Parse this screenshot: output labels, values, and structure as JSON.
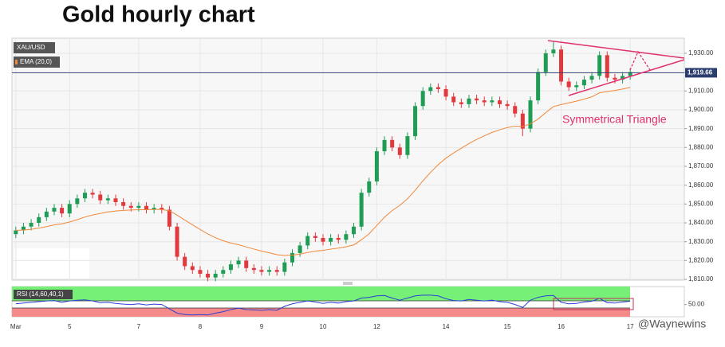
{
  "watermark": "@Waynewins",
  "chart_data": [
    {
      "type": "candlestick",
      "title": "Gold hourly chart",
      "categories": [
        "Mar",
        null,
        null,
        null,
        null,
        null,
        null,
        "5",
        null,
        null,
        null,
        null,
        null,
        null,
        null,
        null,
        "7",
        null,
        null,
        null,
        null,
        null,
        null,
        null,
        "8",
        null,
        null,
        null,
        null,
        null,
        null,
        null,
        "9",
        null,
        null,
        null,
        null,
        null,
        null,
        null,
        "10",
        null,
        null,
        null,
        null,
        null,
        null,
        "12",
        null,
        null,
        null,
        null,
        null,
        null,
        null,
        null,
        "14",
        null,
        null,
        null,
        null,
        null,
        null,
        null,
        "15",
        null,
        null,
        null,
        null,
        null,
        null,
        "16",
        null,
        null,
        null,
        null,
        null,
        null,
        null,
        null,
        "17"
      ],
      "series": [
        {
          "name": "XAU/USD",
          "up_color": "#1f9d55",
          "down_color": "#e0393e",
          "open": [
            1834,
            1836,
            1838,
            1840,
            1843,
            1846,
            1848,
            1845,
            1850,
            1853,
            1856,
            1855,
            1852,
            1853,
            1851,
            1849,
            1848,
            1849,
            1847,
            1848,
            1847,
            1838,
            1822,
            1817,
            1815,
            1813,
            1811,
            1813,
            1815,
            1818,
            1820,
            1816,
            1815,
            1814,
            1815,
            1814,
            1819,
            1824,
            1828,
            1833,
            1832,
            1830,
            1832,
            1831,
            1834,
            1838,
            1856,
            1862,
            1878,
            1884,
            1880,
            1876,
            1886,
            1902,
            1910,
            1912,
            1911,
            1907,
            1904,
            1903,
            1906,
            1905,
            1904,
            1905,
            1903,
            1902,
            1898,
            1890,
            1905,
            1920,
            1930,
            1932,
            1915,
            1912,
            1913,
            1916,
            1918,
            1929,
            1917,
            1916,
            1918
          ],
          "high": [
            1838,
            1840,
            1842,
            1845,
            1848,
            1850,
            1850,
            1852,
            1855,
            1858,
            1858,
            1857,
            1855,
            1855,
            1853,
            1851,
            1851,
            1851,
            1850,
            1850,
            1849,
            1840,
            1824,
            1819,
            1817,
            1815,
            1815,
            1817,
            1820,
            1822,
            1822,
            1818,
            1817,
            1817,
            1817,
            1821,
            1826,
            1830,
            1835,
            1835,
            1834,
            1834,
            1834,
            1836,
            1840,
            1858,
            1864,
            1880,
            1886,
            1886,
            1882,
            1888,
            1904,
            1912,
            1914,
            1914,
            1913,
            1909,
            1906,
            1908,
            1908,
            1907,
            1907,
            1907,
            1905,
            1904,
            1900,
            1907,
            1922,
            1932,
            1936,
            1934,
            1917,
            1915,
            1918,
            1920,
            1931,
            1931,
            1919,
            1920,
            1922
          ],
          "low": [
            1832,
            1834,
            1836,
            1838,
            1841,
            1844,
            1843,
            1843,
            1848,
            1851,
            1853,
            1850,
            1850,
            1849,
            1847,
            1846,
            1846,
            1845,
            1845,
            1845,
            1836,
            1820,
            1815,
            1813,
            1811,
            1809,
            1809,
            1811,
            1813,
            1816,
            1814,
            1813,
            1812,
            1812,
            1812,
            1812,
            1817,
            1822,
            1826,
            1830,
            1828,
            1828,
            1829,
            1829,
            1832,
            1836,
            1854,
            1860,
            1876,
            1878,
            1874,
            1874,
            1884,
            1900,
            1908,
            1909,
            1905,
            1902,
            1901,
            1901,
            1903,
            1902,
            1902,
            1901,
            1900,
            1896,
            1886,
            1888,
            1903,
            1918,
            1928,
            1913,
            1910,
            1910,
            1911,
            1914,
            1916,
            1915,
            1914,
            1914,
            1916
          ],
          "close": [
            1836,
            1838,
            1840,
            1843,
            1846,
            1848,
            1845,
            1850,
            1853,
            1856,
            1855,
            1852,
            1853,
            1851,
            1849,
            1848,
            1849,
            1847,
            1848,
            1847,
            1838,
            1822,
            1817,
            1815,
            1813,
            1811,
            1813,
            1815,
            1818,
            1820,
            1816,
            1815,
            1814,
            1815,
            1814,
            1819,
            1824,
            1828,
            1833,
            1832,
            1830,
            1832,
            1831,
            1834,
            1838,
            1856,
            1862,
            1878,
            1884,
            1880,
            1876,
            1886,
            1902,
            1910,
            1912,
            1911,
            1907,
            1904,
            1903,
            1906,
            1905,
            1904,
            1905,
            1903,
            1902,
            1898,
            1890,
            1905,
            1920,
            1930,
            1932,
            1915,
            1912,
            1913,
            1916,
            1918,
            1929,
            1917,
            1916,
            1918,
            1920
          ]
        },
        {
          "name": "EMA (20,0)",
          "type": "line",
          "color": "#f0883a",
          "values": [
            1836,
            1836.2,
            1836.6,
            1837.2,
            1838,
            1838.9,
            1839.5,
            1840.5,
            1841.7,
            1843.1,
            1844.2,
            1845,
            1845.8,
            1846.3,
            1846.6,
            1846.8,
            1847,
            1847,
            1847.1,
            1847.1,
            1846.4,
            1844.1,
            1841.5,
            1839,
            1836.5,
            1834.1,
            1832.1,
            1830.5,
            1829.3,
            1828.4,
            1827.2,
            1826.1,
            1825,
            1824.1,
            1823.1,
            1822.7,
            1822.9,
            1823.4,
            1824.3,
            1825,
            1825.4,
            1826.1,
            1826.6,
            1827.3,
            1828.3,
            1831,
            1834.2,
            1838.6,
            1843,
            1846.5,
            1849.3,
            1852.8,
            1857.3,
            1862.3,
            1866.8,
            1870.9,
            1874.3,
            1877.1,
            1879.6,
            1882.1,
            1884.3,
            1886.2,
            1888,
            1889.4,
            1890.6,
            1891.3,
            1891.2,
            1892.5,
            1895.1,
            1898.5,
            1901.7,
            1902.8,
            1903.7,
            1904.6,
            1905.7,
            1906.9,
            1909,
            1909.7,
            1910.3,
            1911,
            1911.9
          ]
        }
      ],
      "ylim": [
        1809.6,
        1938
      ],
      "yticks": [
        {
          "value": 1810,
          "label": "1,810.00"
        },
        {
          "value": 1820,
          "label": "1,820.00"
        },
        {
          "value": 1830,
          "label": "1,830.00"
        },
        {
          "value": 1840,
          "label": "1,840.00"
        },
        {
          "value": 1850,
          "label": "1,850.00"
        },
        {
          "value": 1860,
          "label": "1,860.00"
        },
        {
          "value": 1870,
          "label": "1,870.00"
        },
        {
          "value": 1880,
          "label": "1,880.00"
        },
        {
          "value": 1890,
          "label": "1,890.00"
        },
        {
          "value": 1900,
          "label": "1,900.00"
        },
        {
          "value": 1910,
          "label": "1,910.00"
        },
        {
          "value": 1920,
          "label": "1,920.00"
        },
        {
          "value": 1930,
          "label": "1,930.00"
        }
      ],
      "last_price": {
        "value": 1919.66,
        "label": "1,919.66"
      },
      "annotation": "Symmetrical Triangle",
      "grid": true
    },
    {
      "type": "line",
      "series": [
        {
          "name": "RSI (14,60,40,1)",
          "color": "#2b3fd4",
          "values": [
            52,
            54,
            56,
            58,
            60,
            61,
            56,
            60,
            62,
            63,
            60,
            55,
            56,
            53,
            51,
            50,
            52,
            49,
            51,
            50,
            38,
            26,
            22,
            21,
            22,
            21,
            26,
            30,
            36,
            40,
            36,
            35,
            34,
            36,
            34,
            45,
            52,
            56,
            60,
            57,
            53,
            56,
            54,
            58,
            60,
            68,
            70,
            74,
            75,
            68,
            62,
            68,
            74,
            76,
            76,
            74,
            66,
            61,
            60,
            64,
            62,
            60,
            62,
            58,
            56,
            50,
            42,
            62,
            70,
            74,
            75,
            56,
            52,
            53,
            57,
            59,
            67,
            55,
            54,
            57,
            59
          ]
        }
      ],
      "ylim": [
        16,
        100
      ],
      "yticks": [
        {
          "value": 50,
          "label": "50.00"
        }
      ]
    }
  ]
}
